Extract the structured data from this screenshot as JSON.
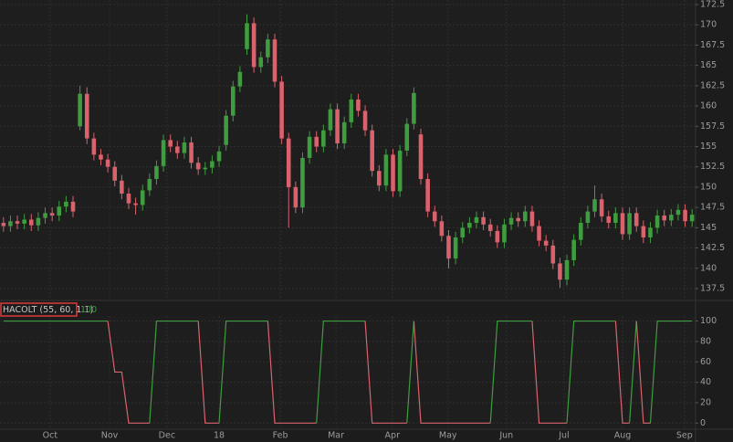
{
  "chart_data": [
    {
      "type": "candlestick",
      "up_color": "#3f9d3f",
      "down_color": "#d9626c",
      "grid": true,
      "xlim": [
        -0.5,
        99.5
      ],
      "xticks": [
        {
          "value": 6.7,
          "label": "Oct"
        },
        {
          "value": 15.25,
          "label": "Nov"
        },
        {
          "value": 23.5,
          "label": "Dec"
        },
        {
          "value": 31,
          "label": "18"
        },
        {
          "value": 39.8,
          "label": "Feb"
        },
        {
          "value": 47.8,
          "label": "Mar"
        },
        {
          "value": 55.9,
          "label": "Apr"
        },
        {
          "value": 63.9,
          "label": "May"
        },
        {
          "value": 72.3,
          "label": "Jun"
        },
        {
          "value": 80.6,
          "label": "Jul"
        },
        {
          "value": 89,
          "label": "Aug"
        },
        {
          "value": 97.9,
          "label": "Sep"
        }
      ],
      "ylim": [
        136.15,
        173.06
      ],
      "yticks": [
        137.5,
        140,
        142.5,
        145,
        147.5,
        150,
        152.5,
        155,
        157.5,
        160,
        162.5,
        165,
        167.5,
        170,
        172.5
      ],
      "open": [
        145.6,
        145.2,
        145.8,
        145.5,
        146.0,
        145.3,
        146.2,
        146.8,
        146.5,
        147.6,
        148.2,
        157.5,
        161.5,
        156.0,
        154.0,
        153.4,
        152.5,
        150.8,
        149.2,
        148.0,
        147.8,
        149.6,
        151.0,
        152.6,
        155.8,
        155.0,
        154.2,
        155.5,
        153.0,
        152.2,
        152.4,
        153.2,
        155.2,
        158.8,
        162.4,
        167.0,
        170.2,
        164.8,
        166.0,
        168.2,
        163.0,
        156.0,
        150.0,
        147.5,
        153.6,
        156.2,
        155.0,
        157.0,
        159.6,
        155.4,
        158.0,
        160.8,
        159.4,
        157.0,
        152.0,
        150.2,
        154.0,
        149.5,
        154.5,
        157.8,
        156.5,
        151.0,
        147.0,
        145.8,
        144.0,
        141.2,
        143.8,
        145.0,
        145.6,
        146.3,
        145.4,
        144.6,
        143.2,
        145.4,
        146.2,
        145.8,
        147.0,
        145.2,
        143.4,
        142.8,
        140.6,
        138.6,
        141.0,
        143.5,
        145.6,
        147.0,
        148.5,
        146.4,
        145.6,
        146.8,
        144.2,
        146.8,
        145.2,
        143.8,
        145.0,
        146.5,
        145.9,
        146.6,
        147.2,
        145.8
      ],
      "high": [
        146.3,
        146.5,
        146.5,
        146.7,
        146.7,
        146.9,
        147.5,
        147.5,
        148.3,
        148.9,
        148.9,
        162.5,
        162.3,
        156.7,
        154.7,
        154.1,
        153.2,
        151.5,
        149.9,
        148.7,
        150.3,
        151.7,
        153.3,
        156.5,
        156.5,
        155.7,
        156.2,
        156.2,
        153.7,
        153.1,
        153.9,
        155.1,
        159.5,
        163.1,
        164.9,
        171.3,
        170.9,
        166.7,
        168.9,
        168.9,
        163.7,
        156.7,
        150.7,
        154.3,
        156.9,
        156.9,
        157.7,
        160.3,
        160.3,
        158.7,
        161.5,
        161.5,
        160.1,
        157.7,
        152.7,
        154.7,
        154.7,
        155.2,
        158.5,
        162.3,
        157.2,
        151.7,
        147.7,
        146.5,
        144.7,
        144.5,
        145.7,
        146.3,
        147.0,
        147.0,
        146.1,
        145.3,
        146.1,
        146.9,
        146.9,
        147.7,
        147.7,
        145.9,
        144.1,
        143.5,
        141.3,
        141.7,
        144.2,
        146.3,
        147.7,
        150.2,
        149.2,
        147.1,
        147.5,
        147.5,
        147.5,
        147.5,
        145.9,
        145.7,
        147.2,
        147.2,
        147.3,
        147.9,
        147.9,
        147.3
      ],
      "low": [
        144.5,
        144.5,
        144.8,
        144.8,
        144.6,
        144.6,
        145.5,
        145.8,
        145.8,
        146.9,
        146.3,
        157.0,
        155.3,
        153.3,
        152.7,
        151.8,
        150.1,
        148.5,
        147.3,
        146.6,
        147.1,
        148.9,
        150.3,
        151.9,
        154.3,
        153.5,
        153.5,
        152.3,
        151.5,
        151.5,
        151.7,
        152.5,
        154.5,
        158.1,
        161.7,
        166.3,
        164.1,
        164.1,
        165.3,
        162.3,
        155.3,
        145.0,
        146.8,
        146.8,
        152.9,
        154.3,
        154.3,
        156.3,
        154.7,
        154.7,
        157.3,
        158.7,
        156.3,
        151.3,
        149.5,
        149.5,
        148.8,
        148.8,
        153.8,
        157.1,
        150.3,
        146.3,
        145.1,
        143.3,
        140.0,
        140.5,
        143.1,
        144.3,
        144.9,
        144.7,
        143.9,
        142.5,
        142.5,
        144.7,
        145.1,
        145.1,
        144.5,
        142.7,
        142.1,
        139.9,
        137.6,
        137.9,
        140.3,
        142.8,
        144.9,
        146.3,
        145.7,
        144.9,
        144.9,
        143.5,
        143.5,
        144.5,
        143.1,
        143.1,
        144.3,
        145.2,
        145.2,
        145.9,
        145.1,
        145.1
      ],
      "close": [
        145.2,
        145.8,
        145.5,
        146.0,
        145.3,
        146.2,
        146.8,
        146.5,
        147.6,
        148.2,
        147.0,
        161.5,
        156.0,
        154.0,
        153.4,
        152.5,
        150.8,
        149.2,
        148.0,
        147.8,
        149.6,
        151.0,
        152.6,
        155.8,
        155.0,
        154.2,
        155.5,
        153.0,
        152.2,
        152.4,
        153.2,
        154.4,
        158.8,
        162.4,
        164.2,
        170.2,
        164.8,
        166.0,
        168.2,
        163.0,
        156.0,
        150.0,
        147.5,
        153.6,
        156.2,
        155.0,
        157.0,
        159.6,
        155.4,
        158.0,
        160.8,
        159.4,
        157.0,
        152.0,
        150.2,
        154.0,
        149.5,
        154.5,
        157.8,
        161.6,
        151.0,
        147.0,
        145.8,
        144.0,
        141.2,
        143.8,
        145.0,
        145.6,
        146.3,
        145.4,
        144.6,
        143.2,
        145.4,
        146.2,
        145.8,
        147.0,
        145.2,
        143.4,
        142.8,
        140.6,
        138.6,
        141.0,
        143.5,
        145.6,
        147.0,
        148.5,
        146.4,
        145.6,
        146.8,
        144.2,
        146.8,
        145.2,
        143.8,
        145.0,
        146.5,
        145.9,
        146.6,
        147.2,
        145.8,
        146.6
      ]
    },
    {
      "type": "line",
      "title": "HACOLT (55, 60, 1.1)",
      "up_color": "#3f9d3f",
      "down_color": "#d9626c",
      "grid": true,
      "ylim": [
        -6,
        105
      ],
      "yticks": [
        0,
        20,
        40,
        60,
        80,
        100
      ],
      "values": [
        100,
        100,
        100,
        100,
        100,
        100,
        100,
        100,
        100,
        100,
        100,
        100,
        100,
        100,
        100,
        100,
        50,
        50,
        0,
        0,
        0,
        0,
        100,
        100,
        100,
        100,
        100,
        100,
        100,
        0,
        0,
        0,
        100,
        100,
        100,
        100,
        100,
        100,
        100,
        0,
        0,
        0,
        0,
        0,
        0,
        0,
        100,
        100,
        100,
        100,
        100,
        100,
        100,
        0,
        0,
        0,
        0,
        0,
        0,
        100,
        0,
        0,
        0,
        0,
        0,
        0,
        0,
        0,
        0,
        0,
        0,
        100,
        100,
        100,
        100,
        100,
        100,
        0,
        0,
        0,
        0,
        0,
        100,
        100,
        100,
        100,
        100,
        100,
        100,
        0,
        0,
        100,
        0,
        0,
        100,
        100,
        100,
        100,
        100,
        100
      ]
    }
  ]
}
